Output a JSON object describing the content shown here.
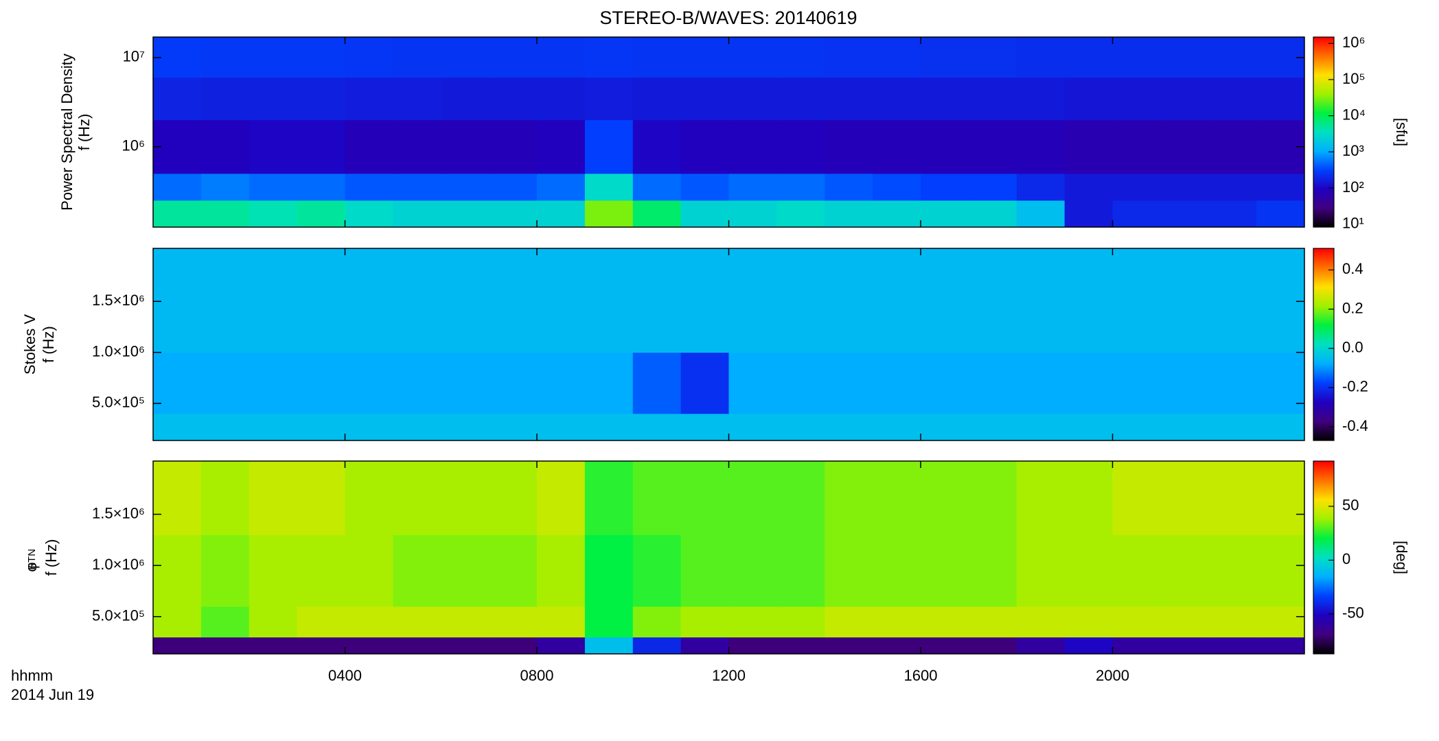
{
  "chart_data": [
    {
      "type": "heatmap",
      "title": "STEREO-B/WAVES: 20140619",
      "ylabel": [
        "Power Spectral Density",
        "f (Hz)"
      ],
      "xlim": [
        0,
        24
      ],
      "xticks": [
        4,
        8,
        12,
        16,
        20
      ],
      "ylog": true,
      "ylim": [
        125000,
        17000000
      ],
      "yticks": [
        {
          "value": 1000000,
          "label": "10⁶"
        },
        {
          "value": 10000000,
          "label": "10⁷"
        }
      ],
      "x_edges": [
        0,
        1,
        2,
        3,
        4,
        5,
        6,
        7,
        8,
        9,
        10,
        11,
        12,
        13,
        14,
        15,
        16,
        17,
        18,
        19,
        20,
        21,
        22,
        23,
        24
      ],
      "y_edges": [
        125000,
        250000,
        500000,
        2000000,
        6000000,
        17000000
      ],
      "values": [
        [
          5000,
          5000,
          4000,
          5000,
          3000,
          2500,
          2500,
          2500,
          2500,
          30000,
          8000,
          2500,
          2500,
          3000,
          2500,
          2500,
          2500,
          2500,
          1500,
          150,
          200,
          200,
          200,
          250
        ],
        [
          500,
          600,
          500,
          500,
          400,
          400,
          400,
          400,
          500,
          3000,
          500,
          400,
          500,
          500,
          400,
          350,
          300,
          300,
          200,
          150,
          150,
          150,
          150,
          150
        ],
        [
          90,
          90,
          100,
          100,
          80,
          80,
          80,
          80,
          90,
          300,
          100,
          90,
          90,
          90,
          80,
          80,
          80,
          80,
          80,
          70,
          70,
          70,
          70,
          70
        ],
        [
          180,
          170,
          170,
          170,
          160,
          160,
          150,
          150,
          150,
          160,
          150,
          150,
          150,
          150,
          150,
          150,
          150,
          150,
          150,
          140,
          140,
          140,
          140,
          140
        ],
        [
          280,
          270,
          270,
          270,
          260,
          250,
          250,
          250,
          250,
          260,
          250,
          250,
          250,
          250,
          240,
          240,
          230,
          230,
          220,
          220,
          220,
          220,
          220,
          220
        ]
      ],
      "clog": true,
      "clim": [
        8.3,
        1500000
      ],
      "cticks": [
        {
          "value": 10,
          "label": "10¹"
        },
        {
          "value": 100,
          "label": "10²"
        },
        {
          "value": 1000,
          "label": "10³"
        },
        {
          "value": 10000,
          "label": "10⁴"
        },
        {
          "value": 100000,
          "label": "10⁵"
        },
        {
          "value": 1000000,
          "label": "10⁶"
        }
      ],
      "clabel": "[sfu]",
      "colormap": [
        "#000000",
        "#400080",
        "#2000c0",
        "#0040ff",
        "#00b0ff",
        "#00e0c0",
        "#00f040",
        "#a0f000",
        "#ffe000",
        "#ff7000",
        "#ff0000"
      ]
    },
    {
      "type": "heatmap",
      "ylabel": [
        "Stokes V",
        "f (Hz)"
      ],
      "xlim": [
        0,
        24
      ],
      "xticks": [
        4,
        8,
        12,
        16,
        20
      ],
      "ylog": false,
      "ylim": [
        136000,
        2020000
      ],
      "yticks": [
        {
          "value": 500000,
          "label": "5.0×10⁵"
        },
        {
          "value": 1000000,
          "label": "1.0×10⁶"
        },
        {
          "value": 1500000,
          "label": "1.5×10⁶"
        }
      ],
      "x_edges": [
        0,
        1,
        2,
        3,
        4,
        5,
        6,
        7,
        8,
        9,
        10,
        11,
        12,
        13,
        14,
        15,
        16,
        17,
        18,
        19,
        20,
        21,
        22,
        23,
        24
      ],
      "y_edges": [
        136000,
        400000,
        1000000,
        2020000
      ],
      "values": [
        [
          -0.05,
          -0.05,
          -0.05,
          -0.05,
          -0.05,
          -0.05,
          -0.05,
          -0.05,
          -0.05,
          -0.05,
          -0.05,
          -0.05,
          -0.05,
          -0.05,
          -0.05,
          -0.05,
          -0.05,
          -0.05,
          -0.05,
          -0.05,
          -0.05,
          -0.05,
          -0.05,
          -0.05
        ],
        [
          -0.08,
          -0.08,
          -0.08,
          -0.08,
          -0.08,
          -0.08,
          -0.08,
          -0.08,
          -0.08,
          -0.08,
          -0.15,
          -0.2,
          -0.08,
          -0.08,
          -0.08,
          -0.08,
          -0.08,
          -0.08,
          -0.08,
          -0.08,
          -0.08,
          -0.08,
          -0.08,
          -0.08
        ],
        [
          -0.06,
          -0.06,
          -0.06,
          -0.06,
          -0.06,
          -0.06,
          -0.06,
          -0.06,
          -0.06,
          -0.06,
          -0.06,
          -0.06,
          -0.06,
          -0.06,
          -0.06,
          -0.06,
          -0.06,
          -0.06,
          -0.06,
          -0.06,
          -0.06,
          -0.06,
          -0.06,
          -0.06
        ]
      ],
      "clog": false,
      "clim": [
        -0.47,
        0.51
      ],
      "cticks": [
        -0.4,
        -0.2,
        {
          "value": 0,
          "label": "0.0"
        },
        0.2,
        0.4
      ],
      "colormap": [
        "#000000",
        "#400080",
        "#2000c0",
        "#0040ff",
        "#00b0ff",
        "#00e0c0",
        "#00f040",
        "#a0f000",
        "#ffe000",
        "#ff7000",
        "#ff0000"
      ]
    },
    {
      "type": "heatmap",
      "ylabel": [
        "φ",
        "f (Hz)"
      ],
      "ylabel_subscript": "RTN",
      "xlabel": "hhmm",
      "date": "2014 Jun 19",
      "xlim": [
        0,
        24
      ],
      "xticks": [
        {
          "value": 4,
          "label": "0400"
        },
        {
          "value": 8,
          "label": "0800"
        },
        {
          "value": 12,
          "label": "1200"
        },
        {
          "value": 16,
          "label": "1600"
        },
        {
          "value": 20,
          "label": "2000"
        }
      ],
      "ylog": false,
      "ylim": [
        136000,
        2020000
      ],
      "yticks": [
        {
          "value": 500000,
          "label": "5.0×10⁵"
        },
        {
          "value": 1000000,
          "label": "1.0×10⁶"
        },
        {
          "value": 1500000,
          "label": "1.5×10⁶"
        }
      ],
      "x_edges": [
        0,
        1,
        2,
        3,
        4,
        5,
        6,
        7,
        8,
        9,
        10,
        11,
        12,
        13,
        14,
        15,
        16,
        17,
        18,
        19,
        20,
        21,
        22,
        23,
        24
      ],
      "y_edges": [
        136000,
        300000,
        600000,
        1300000,
        2020000
      ],
      "values": [
        [
          -70,
          -70,
          -70,
          -70,
          -70,
          -70,
          -70,
          -70,
          -60,
          -10,
          -40,
          -60,
          -70,
          -70,
          -70,
          -70,
          -70,
          -70,
          -60,
          -50,
          -60,
          -60,
          -60,
          -60
        ],
        [
          40,
          30,
          40,
          45,
          45,
          45,
          45,
          45,
          45,
          20,
          35,
          40,
          40,
          40,
          45,
          45,
          45,
          45,
          45,
          45,
          45,
          45,
          45,
          45
        ],
        [
          40,
          35,
          40,
          40,
          40,
          35,
          35,
          35,
          40,
          20,
          25,
          30,
          30,
          30,
          35,
          35,
          35,
          35,
          40,
          40,
          40,
          40,
          40,
          40
        ],
        [
          45,
          40,
          45,
          45,
          40,
          40,
          40,
          40,
          45,
          25,
          30,
          30,
          30,
          30,
          35,
          35,
          35,
          35,
          40,
          40,
          45,
          45,
          45,
          45
        ]
      ],
      "clog": false,
      "clim": [
        -87,
        92
      ],
      "cticks": [
        -50,
        0,
        50
      ],
      "clabel": "[deg]",
      "colormap": [
        "#000000",
        "#400080",
        "#2000c0",
        "#0040ff",
        "#00b0ff",
        "#00e0c0",
        "#00f040",
        "#a0f000",
        "#ffe000",
        "#ff7000",
        "#ff0000"
      ]
    }
  ]
}
